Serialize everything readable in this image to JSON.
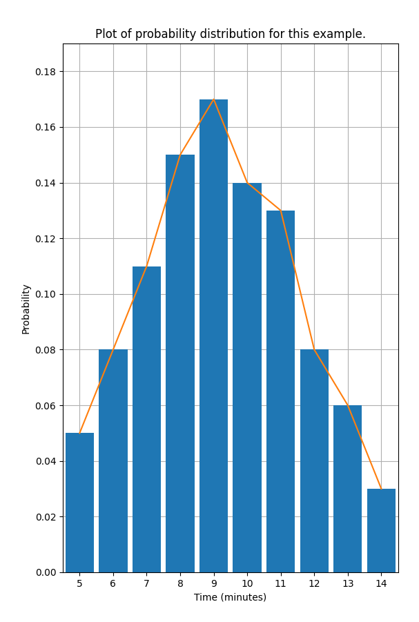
{
  "chart_data": {
    "type": "bar",
    "title": "Plot of probability distribution for this example.",
    "xlabel": "Time (minutes)",
    "ylabel": "Probability",
    "x": [
      5,
      6,
      7,
      8,
      9,
      10,
      11,
      12,
      13,
      14
    ],
    "series": [
      {
        "type": "bar",
        "values": [
          0.05,
          0.08,
          0.11,
          0.15,
          0.17,
          0.14,
          0.13,
          0.08,
          0.06,
          0.03
        ]
      },
      {
        "type": "line",
        "values": [
          0.05,
          0.08,
          0.11,
          0.15,
          0.17,
          0.14,
          0.13,
          0.08,
          0.06,
          0.03
        ]
      }
    ],
    "xlim": [
      4.5,
      14.5
    ],
    "xticks": [
      5,
      6,
      7,
      8,
      9,
      10,
      11,
      12,
      13,
      14
    ],
    "ylim": [
      0,
      0.19
    ],
    "yticks": [
      {
        "value": 0.0,
        "label": "0.00"
      },
      {
        "value": 0.02,
        "label": "0.02"
      },
      {
        "value": 0.04,
        "label": "0.04"
      },
      {
        "value": 0.06,
        "label": "0.06"
      },
      {
        "value": 0.08,
        "label": "0.08"
      },
      {
        "value": 0.1,
        "label": "0.10"
      },
      {
        "value": 0.12,
        "label": "0.12"
      },
      {
        "value": 0.14,
        "label": "0.14"
      },
      {
        "value": 0.16,
        "label": "0.16"
      },
      {
        "value": 0.18,
        "label": "0.18"
      }
    ],
    "grid": true
  }
}
